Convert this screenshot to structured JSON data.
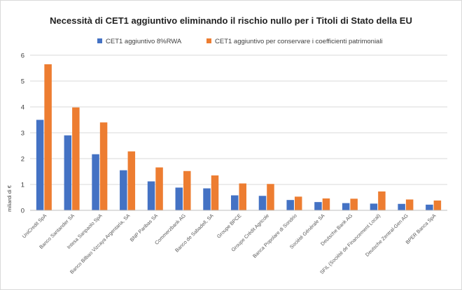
{
  "chart_data": {
    "type": "bar",
    "title": "Necessità di CET1 aggiuntivo eliminando il rischio nullo per i Titoli di Stato della EU",
    "ylabel": "miliardi di €",
    "xlabel": "",
    "ylim": [
      0,
      6
    ],
    "yticks": [
      "0",
      "1",
      "2",
      "3",
      "4",
      "5",
      "6"
    ],
    "grid": true,
    "legend_position": "top",
    "categories": [
      "UniCredit SpA",
      "Banco Santander SA",
      "Intesa Sanpaolo SpA",
      "Banco Bilbao Vizcaya Argentaria, SA",
      "BNP Paribas SA",
      "Commerzbank AG",
      "Banco de Sabadell, SA",
      "Groupe BPCE",
      "Groupe Crédit Agricole",
      "Banca Popolare di Sondrio",
      "Société Générale SA",
      "Deutsche Bank AG",
      "SFIL (Société de Financement Local)",
      "Deutsche Zentral-Gen AG",
      "BPER Banca SpA"
    ],
    "series": [
      {
        "name": "CET1 aggiuntivo 8%RWA",
        "color": "#4472c4",
        "values": [
          3.5,
          2.9,
          2.17,
          1.55,
          1.12,
          0.88,
          0.85,
          0.58,
          0.56,
          0.4,
          0.32,
          0.28,
          0.26,
          0.25,
          0.22
        ]
      },
      {
        "name": "CET1 aggiuntivo per conservare i coefficienti patrimoniali",
        "color": "#ed7d31",
        "values": [
          5.65,
          3.98,
          3.4,
          2.28,
          1.66,
          1.52,
          1.35,
          1.04,
          1.02,
          0.53,
          0.46,
          0.45,
          0.73,
          0.42,
          0.38
        ]
      }
    ]
  }
}
